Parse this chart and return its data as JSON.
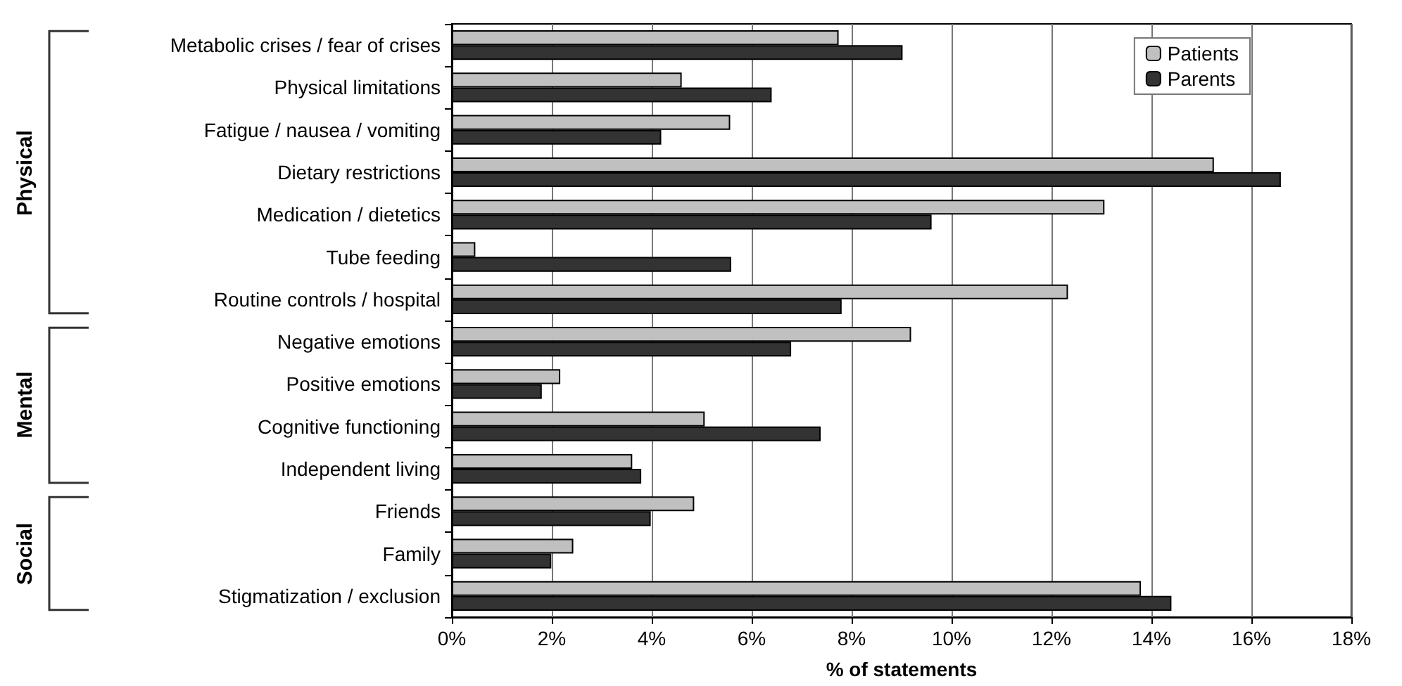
{
  "chart_data": {
    "type": "bar",
    "orientation": "horizontal",
    "xlabel": "% of statements",
    "categories": [
      "Metabolic crises / fear of crises",
      "Physical limitations",
      "Fatigue / nausea / vomiting",
      "Dietary restrictions",
      "Medication / dietetics",
      "Tube feeding",
      "Routine controls / hospital",
      "Negative emotions",
      "Positive emotions",
      "Cognitive functioning",
      "Independent living",
      "Friends",
      "Family",
      "Stigmatization / exclusion"
    ],
    "series": [
      {
        "name": "Patients",
        "color": "#c0c0c0",
        "values": [
          7.74,
          4.6,
          5.57,
          15.25,
          13.06,
          0.47,
          12.33,
          9.19,
          2.17,
          5.06,
          3.61,
          4.85,
          2.43,
          13.79
        ]
      },
      {
        "name": "Parents",
        "color": "#333333",
        "values": [
          9.02,
          6.4,
          4.19,
          16.59,
          9.6,
          5.59,
          7.8,
          6.79,
          1.8,
          7.38,
          3.79,
          3.98,
          1.99,
          14.4
        ]
      }
    ],
    "xlim": [
      0,
      18
    ],
    "xticks": [
      {
        "value": 0,
        "label": "0%"
      },
      {
        "value": 2,
        "label": "2%"
      },
      {
        "value": 4,
        "label": "4%"
      },
      {
        "value": 6,
        "label": "6%"
      },
      {
        "value": 8,
        "label": "8%"
      },
      {
        "value": 10,
        "label": "10%"
      },
      {
        "value": 12,
        "label": "12%"
      },
      {
        "value": 14,
        "label": "14%"
      },
      {
        "value": 16,
        "label": "16%"
      },
      {
        "value": 18,
        "label": "18%"
      }
    ],
    "grid": "x",
    "legend": "top right",
    "annotations": [
      "Physical",
      "Mental",
      "Social"
    ]
  }
}
